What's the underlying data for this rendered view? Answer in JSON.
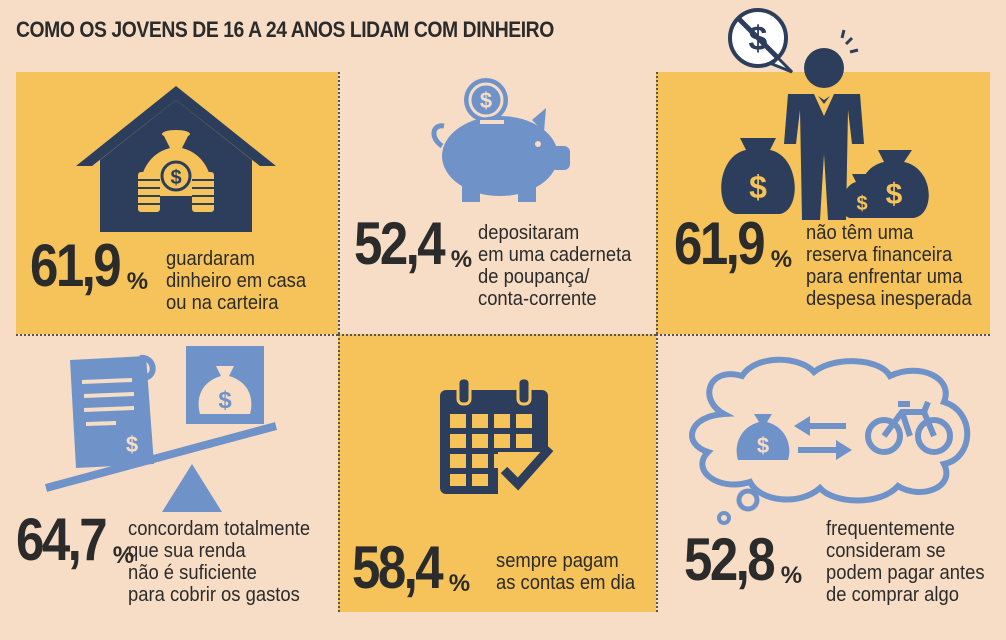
{
  "title": "COMO OS JOVENS DE 16 A 24 ANOS LIDAM COM DINHEIRO",
  "colors": {
    "background": "#f8ddc6",
    "panel": "#f5c35a",
    "icon_dark": "#2d3e5c",
    "icon_blue": "#6f93c8"
  },
  "items": [
    {
      "value": "61,9",
      "unit": "%",
      "text": "guardaram\ndinheiro em casa\nou na carteira",
      "icon": "house-moneybag-icon"
    },
    {
      "value": "52,4",
      "unit": "%",
      "text": "depositaram\nem uma caderneta\nde poupança/\nconta-corrente",
      "icon": "piggy-bank-icon"
    },
    {
      "value": "61,9",
      "unit": "%",
      "text": "não têm uma\nreserva financeira\npara enfrentar uma\ndespesa inesperada",
      "icon": "worried-man-moneybags-icon"
    },
    {
      "value": "64,7",
      "unit": "%",
      "text": "concordam totalmente\nque sua renda\nnão é suficiente\npara cobrir os gastos",
      "icon": "bill-scale-icon"
    },
    {
      "value": "58,4",
      "unit": "%",
      "text": "sempre pagam\nas contas em dia",
      "icon": "calendar-check-icon"
    },
    {
      "value": "52,8",
      "unit": "%",
      "text": "frequentemente\nconsideram se\npodem pagar antes\nde comprar algo",
      "icon": "thought-cloud-icon"
    }
  ]
}
